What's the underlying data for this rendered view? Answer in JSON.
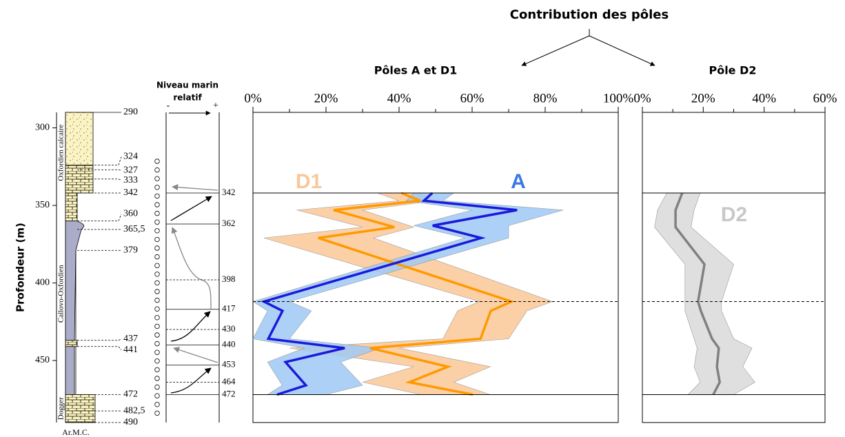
{
  "title": "Contribution des pôles",
  "depth_axis": {
    "label": "Profondeur (m)",
    "lim": [
      290,
      490
    ],
    "ticks": [
      300,
      350,
      400,
      450
    ]
  },
  "lithology": {
    "caption": "Ar.M.C.",
    "units": [
      {
        "name": "Oxfordien calcaire",
        "top": 290,
        "base": 342
      },
      {
        "name": "Callovo-Oxfordien",
        "top": 342,
        "base": 472
      },
      {
        "name": "Dogger",
        "top": 472,
        "base": 490
      }
    ],
    "depths": [
      290,
      324,
      327,
      333,
      342,
      360,
      {
        "value": 365.5,
        "label": "365,5"
      },
      379,
      437,
      441,
      472,
      {
        "value": 482.5,
        "label": "482,5"
      },
      490
    ]
  },
  "sea_level": {
    "title": [
      "Niveau marin",
      "relatif"
    ],
    "minus": "-",
    "plus": "+",
    "levels": [
      342,
      362,
      398,
      417,
      430,
      440,
      453,
      464,
      472
    ],
    "styles": [
      "solid",
      "solid",
      "dashed",
      "solid",
      "dashed",
      "solid",
      "solid",
      "dashed",
      "solid"
    ]
  },
  "hlines": [
    {
      "depth": 342,
      "style": "solid"
    },
    {
      "depth": 412,
      "style": "dashed"
    },
    {
      "depth": 472,
      "style": "solid"
    }
  ],
  "chart_data": [
    {
      "type": "line",
      "title": "Pôles A et D1",
      "xlim": [
        0,
        100
      ],
      "ylim": [
        290,
        490
      ],
      "xticks": [
        {
          "value": 0,
          "label": "0%"
        },
        {
          "value": 20,
          "label": "20%"
        },
        {
          "value": 40,
          "label": "40%"
        },
        {
          "value": 60,
          "label": "60%"
        },
        {
          "value": 80,
          "label": "80%"
        },
        {
          "value": 100,
          "label": "100%"
        }
      ],
      "minor_xticks": [
        10,
        30,
        50,
        70,
        90
      ],
      "series": [
        {
          "name": "D1",
          "color": "#ff9900",
          "band_color": "#fcc896",
          "label_color": "#f9c79b",
          "depth": [
            342,
            347,
            353,
            364,
            371,
            412,
            418,
            436,
            442,
            454,
            464,
            472
          ],
          "values": [
            40.6,
            45.8,
            22.1,
            38.7,
            17.9,
            70.8,
            65.1,
            62.3,
            32.1,
            53.4,
            42.8,
            60.2
          ],
          "lower": [
            34,
            40,
            12,
            30,
            3,
            62,
            56,
            52,
            10,
            44,
            30,
            46
          ],
          "upper": [
            45,
            50,
            30,
            44,
            33,
            82,
            75,
            70,
            40,
            65,
            55,
            65
          ]
        },
        {
          "name": "A",
          "color": "#1a1adb",
          "band_color": "#9fc9f4",
          "label_color": "#3b78e7",
          "depth": [
            342,
            347,
            353,
            363,
            371,
            412,
            418,
            436,
            442,
            451,
            466,
            472
          ],
          "values": [
            49.1,
            46.8,
            72.3,
            49.2,
            62.5,
            3.0,
            8.1,
            4.2,
            25.1,
            8.9,
            14.5,
            6.6
          ],
          "lower": [
            44,
            42,
            60,
            44,
            58,
            0,
            4,
            0,
            14,
            4,
            8,
            4
          ],
          "upper": [
            55,
            52,
            85,
            70,
            70,
            10,
            16,
            10,
            35,
            24,
            30,
            20
          ]
        }
      ]
    },
    {
      "type": "line",
      "title": "Pôle D2",
      "xlim": [
        0,
        60
      ],
      "ylim": [
        290,
        490
      ],
      "xticks": [
        {
          "value": 0,
          "label": "0%"
        },
        {
          "value": 20,
          "label": "20%"
        },
        {
          "value": 40,
          "label": "40%"
        },
        {
          "value": 60,
          "label": "60%"
        }
      ],
      "minor_xticks": [
        10,
        30,
        50
      ],
      "series": [
        {
          "name": "D2",
          "color": "#808080",
          "band_color": "#d9d9d9",
          "label_color": "#c8c8c8",
          "depth": [
            342,
            353,
            364,
            388,
            412,
            418,
            436,
            442,
            454,
            464,
            472
          ],
          "values": [
            13.1,
            10.9,
            10.9,
            20.4,
            18.3,
            19.2,
            22.9,
            25.1,
            24.5,
            25.4,
            23.3
          ],
          "lower": [
            8,
            5,
            4,
            14,
            14,
            14,
            17,
            18,
            17,
            19,
            15
          ],
          "upper": [
            19,
            17,
            16,
            30,
            26,
            26,
            30,
            36,
            33,
            37,
            30
          ]
        }
      ]
    }
  ]
}
